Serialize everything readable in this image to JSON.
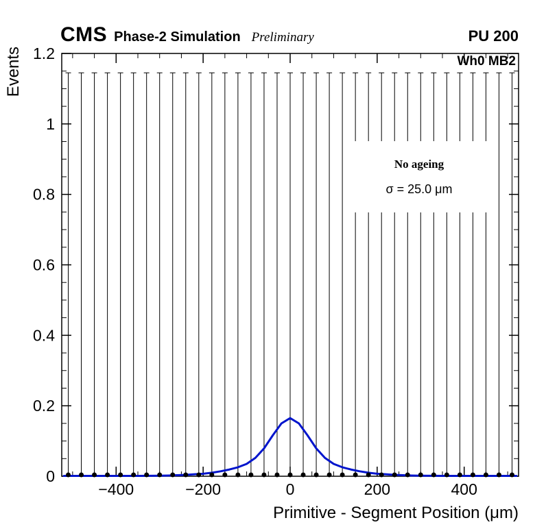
{
  "header": {
    "experiment": "CMS",
    "context": "Phase-2 Simulation",
    "status": "Preliminary",
    "pileup": "PU 200"
  },
  "plot_label": "Wh0 MB2",
  "legend": {
    "line1": "No ageing",
    "line2": "σ = 25.0 μm"
  },
  "chart_data": {
    "type": "scatter",
    "title": "",
    "xlabel": "Primitive - Segment Position (μm)",
    "ylabel": "Events",
    "xlim": [
      -525,
      525
    ],
    "ylim": [
      0,
      1.2
    ],
    "grid": false,
    "x_major_ticks": {
      "values": [
        -400,
        -200,
        0,
        200,
        400
      ],
      "labels": [
        "−400",
        "−200",
        "0",
        "200",
        "400"
      ]
    },
    "x_minor_step": 50,
    "y_major_ticks": {
      "values": [
        0,
        0.2,
        0.4,
        0.6,
        0.8,
        1.0,
        1.2
      ],
      "labels": [
        "0",
        "0.2",
        "0.4",
        "0.6",
        "0.8",
        "1",
        "1.2"
      ]
    },
    "y_minor_step": 0.05,
    "error_bars": {
      "comment_visible_content": "black data markers along y=0 with vertical error bars reaching y_high at every bin",
      "x_first": -510,
      "x_step": 30,
      "count": 35,
      "y_low": 0,
      "y_high": 1.145,
      "marker_y": 0.004,
      "marker_radius_px": 3.5,
      "color": "#000000"
    },
    "fit_curve": {
      "color": "#0014cc",
      "peak": 0.165,
      "x": [
        -520,
        -460,
        -400,
        -350,
        -300,
        -280,
        -260,
        -240,
        -220,
        -200,
        -180,
        -160,
        -140,
        -120,
        -100,
        -80,
        -60,
        -40,
        -20,
        0,
        20,
        40,
        60,
        80,
        100,
        120,
        140,
        160,
        180,
        200,
        220,
        240,
        260,
        280,
        300,
        350,
        400,
        460,
        520
      ],
      "y": [
        0.001,
        0.001,
        0.001,
        0.001,
        0.0015,
        0.002,
        0.003,
        0.004,
        0.0055,
        0.007,
        0.01,
        0.014,
        0.019,
        0.0255,
        0.035,
        0.052,
        0.079,
        0.116,
        0.15,
        0.165,
        0.15,
        0.116,
        0.079,
        0.052,
        0.035,
        0.0255,
        0.019,
        0.014,
        0.01,
        0.007,
        0.0055,
        0.004,
        0.003,
        0.002,
        0.0015,
        0.001,
        0.001,
        0.001,
        0.001
      ]
    },
    "colors": {
      "curve": "#0014cc",
      "marker": "#000000",
      "frame": "#000000"
    }
  }
}
